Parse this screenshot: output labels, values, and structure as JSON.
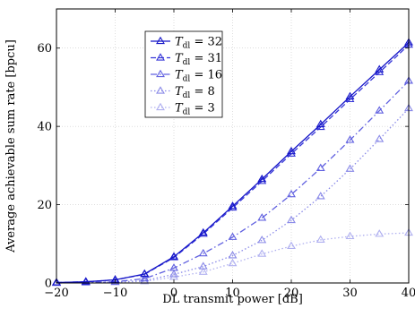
{
  "chart_data": {
    "type": "line",
    "xlabel": "DL transmit power [dB]",
    "ylabel": "Average achievable sum rate [bpcu]",
    "xlim": [
      -20,
      40
    ],
    "ylim": [
      0,
      70
    ],
    "xticks": [
      -20,
      -10,
      0,
      10,
      20,
      30,
      40
    ],
    "yticks": [
      0,
      20,
      40,
      60
    ],
    "xtick_labels": [
      "−20",
      "−10",
      "0",
      "10",
      "20",
      "30",
      "40"
    ],
    "ytick_labels": [
      "0",
      "20",
      "40",
      "60"
    ],
    "grid": true,
    "legend_position": "top-left",
    "x": [
      -20,
      -15,
      -10,
      -5,
      0,
      5,
      10,
      15,
      20,
      25,
      30,
      35,
      40
    ],
    "series": [
      {
        "name": "T_dl = 32",
        "legend_var": "T",
        "legend_sub": "dl",
        "legend_rhs": " = 32",
        "color": "#1515c8",
        "dash": "solid",
        "values": [
          0.1,
          0.3,
          0.8,
          2.3,
          6.7,
          12.8,
          19.6,
          26.5,
          33.6,
          40.5,
          47.6,
          54.5,
          61.4
        ]
      },
      {
        "name": "T_dl = 31",
        "legend_var": "T",
        "legend_sub": "dl",
        "legend_rhs": " = 31",
        "color": "#3535d8",
        "dash": "dashed",
        "values": [
          0.1,
          0.3,
          0.8,
          2.2,
          6.5,
          12.5,
          19.2,
          26.0,
          33.0,
          39.8,
          46.9,
          53.8,
          60.8
        ]
      },
      {
        "name": "T_dl = 16",
        "legend_var": "T",
        "legend_sub": "dl",
        "legend_rhs": " = 16",
        "color": "#6060e0",
        "dash": "dashdot",
        "values": [
          0.0,
          0.1,
          0.3,
          1.1,
          3.8,
          7.5,
          11.7,
          16.6,
          22.6,
          29.3,
          36.5,
          44.0,
          51.6
        ]
      },
      {
        "name": "T_dl = 8",
        "legend_var": "T",
        "legend_sub": "dl",
        "legend_rhs": " = 8",
        "color": "#8a8ae8",
        "dash": "dotted",
        "values": [
          0.0,
          0.1,
          0.2,
          0.6,
          2.2,
          4.2,
          7.0,
          10.9,
          16.0,
          22.1,
          29.1,
          36.7,
          44.6
        ]
      },
      {
        "name": "T_dl = 3",
        "legend_var": "T",
        "legend_sub": "dl",
        "legend_rhs": " = 3",
        "color": "#b0b0f0",
        "dash": "dotted",
        "values": [
          0.0,
          0.1,
          0.2,
          0.4,
          1.5,
          2.8,
          5.0,
          7.4,
          9.4,
          11.0,
          11.9,
          12.5,
          12.8
        ]
      }
    ]
  }
}
